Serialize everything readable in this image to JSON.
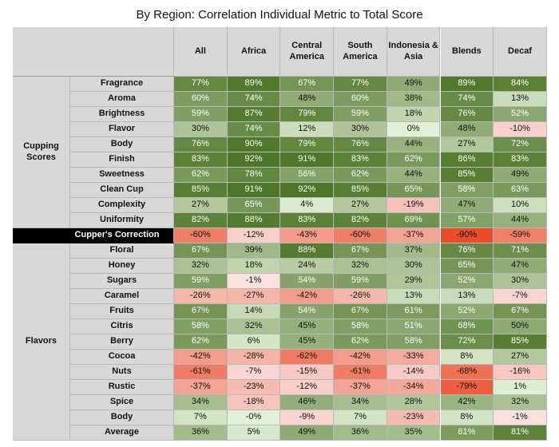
{
  "chart_data": {
    "type": "table",
    "title": "By Region: Correlation Individual Metric to Total Score",
    "columns": [
      "All",
      "Africa",
      "Central America",
      "South America",
      "Indonesia & Asia",
      "Blends",
      "Decaf"
    ],
    "groups": [
      {
        "label": "Cupping Scores",
        "rows": [
          {
            "label": "Fragrance",
            "values": [
              77,
              89,
              67,
              77,
              49,
              89,
              84
            ]
          },
          {
            "label": "Aroma",
            "values": [
              60,
              74,
              48,
              60,
              38,
              74,
              13
            ]
          },
          {
            "label": "Brightness",
            "values": [
              59,
              87,
              79,
              59,
              18,
              76,
              52
            ]
          },
          {
            "label": "Flavor",
            "values": [
              30,
              74,
              12,
              30,
              0,
              48,
              -10
            ]
          },
          {
            "label": "Body",
            "values": [
              76,
              90,
              79,
              76,
              44,
              27,
              72
            ]
          },
          {
            "label": "Finish",
            "values": [
              83,
              92,
              91,
              83,
              62,
              86,
              83
            ]
          },
          {
            "label": "Sweetness",
            "values": [
              62,
              78,
              56,
              62,
              44,
              85,
              49
            ]
          },
          {
            "label": "Clean Cup",
            "values": [
              85,
              91,
              92,
              85,
              65,
              58,
              63
            ]
          },
          {
            "label": "Complexity",
            "values": [
              27,
              65,
              4,
              27,
              -19,
              47,
              10
            ]
          },
          {
            "label": "Uniformity",
            "values": [
              82,
              88,
              83,
              82,
              69,
              57,
              44
            ]
          }
        ]
      },
      {
        "label": "",
        "special": true,
        "rows": [
          {
            "label": "Cupper's Correction",
            "values": [
              -60,
              -12,
              -43,
              -60,
              -37,
              -90,
              -59
            ]
          }
        ]
      },
      {
        "label": "Flavors",
        "rows": [
          {
            "label": "Floral",
            "values": [
              67,
              39,
              88,
              67,
              37,
              76,
              71
            ]
          },
          {
            "label": "Honey",
            "values": [
              32,
              18,
              24,
              32,
              30,
              65,
              47
            ]
          },
          {
            "label": "Sugars",
            "values": [
              59,
              -1,
              54,
              59,
              29,
              52,
              30
            ]
          },
          {
            "label": "Caramel",
            "values": [
              -26,
              -27,
              -42,
              -26,
              13,
              13,
              -7
            ]
          },
          {
            "label": "Fruits",
            "values": [
              67,
              14,
              54,
              67,
              61,
              52,
              67
            ]
          },
          {
            "label": "Citris",
            "values": [
              58,
              32,
              45,
              58,
              51,
              68,
              50
            ]
          },
          {
            "label": "Berry",
            "values": [
              62,
              6,
              45,
              62,
              58,
              72,
              85
            ]
          },
          {
            "label": "Cocoa",
            "values": [
              -42,
              -28,
              -62,
              -42,
              -33,
              8,
              27
            ]
          },
          {
            "label": "Nuts",
            "values": [
              -61,
              -7,
              -15,
              -61,
              -14,
              -68,
              -16
            ]
          },
          {
            "label": "Rustic",
            "values": [
              -37,
              -23,
              -12,
              -37,
              -34,
              -79,
              1
            ]
          },
          {
            "label": "Spice",
            "values": [
              34,
              -18,
              46,
              34,
              28,
              42,
              32
            ]
          },
          {
            "label": "Body",
            "values": [
              7,
              "-0",
              -9,
              7,
              -23,
              8,
              -1
            ]
          },
          {
            "label": "Average",
            "values": [
              36,
              5,
              49,
              36,
              35,
              61,
              81
            ]
          }
        ]
      }
    ]
  }
}
